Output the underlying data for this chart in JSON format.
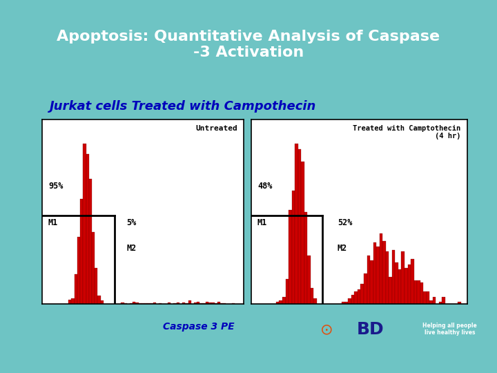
{
  "title": "Apoptosis: Quantitative Analysis of Caspase\n-3 Activation",
  "subtitle": "Jurkat cells Treated with Campothecin",
  "xlabel": "Caspase 3 PE",
  "title_bg": "#1e0f6e",
  "title_color": "#ffffff",
  "subtitle_color": "#0000bb",
  "bg_color": "#6ec4c4",
  "panel_bg": "#ffffff",
  "left_label": "Untreated",
  "right_label": "Treated with Camptothecin\n(4 hr)",
  "left_m1_pct": "95%",
  "left_m2_pct": "5%",
  "right_m1_pct": "48%",
  "right_m2_pct": "52%",
  "m1_label": "M1",
  "m2_label": "M2",
  "hist_color": "#cc0000",
  "hist_edge": "#660000",
  "bottom_bar_color": "#1e0f6e",
  "bd_blue": "#1a1a8c",
  "bd_orange": "#e05010"
}
